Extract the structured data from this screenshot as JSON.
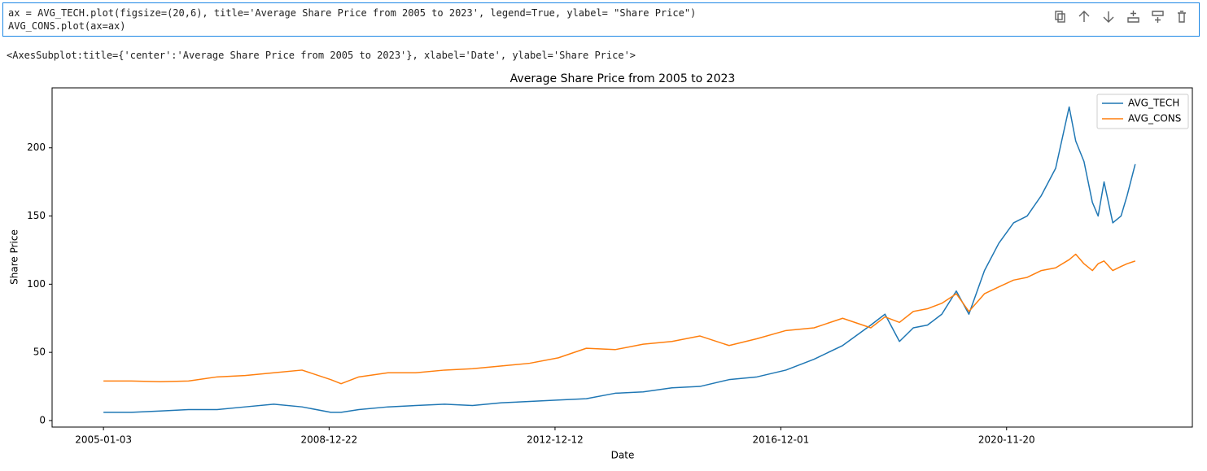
{
  "cell": {
    "code_lines": [
      "ax = AVG_TECH.plot(figsize=(20,6), title='Average Share Price from 2005 to 2023', legend=True, ylabel= \"Share Price\")",
      "AVG_CONS.plot(ax=ax)"
    ]
  },
  "output_text": "<AxesSubplot:title={'center':'Average Share Price from 2005 to 2023'}, xlabel='Date', ylabel='Share Price'>",
  "chart_data": {
    "type": "line",
    "title": "Average Share Price from 2005 to 2023",
    "xlabel": "Date",
    "ylabel": "Share Price",
    "legend": "upper right",
    "x": [
      "2005-01-03",
      "2005-07-01",
      "2006-01-03",
      "2006-07-03",
      "2007-01-03",
      "2007-07-02",
      "2008-01-02",
      "2008-07-01",
      "2009-01-02",
      "2009-03-09",
      "2009-07-01",
      "2010-01-04",
      "2010-07-01",
      "2011-01-03",
      "2011-07-01",
      "2012-01-03",
      "2012-07-02",
      "2013-01-02",
      "2013-07-01",
      "2014-01-02",
      "2014-07-01",
      "2015-01-02",
      "2015-07-01",
      "2016-01-04",
      "2016-07-01",
      "2017-01-03",
      "2017-07-03",
      "2018-01-02",
      "2018-07-02",
      "2018-10-01",
      "2019-01-02",
      "2019-04-01",
      "2019-07-01",
      "2019-10-01",
      "2020-01-02",
      "2020-03-23",
      "2020-07-01",
      "2020-10-01",
      "2021-01-04",
      "2021-04-01",
      "2021-07-01",
      "2021-10-01",
      "2021-12-27",
      "2022-02-07",
      "2022-04-01",
      "2022-05-25",
      "2022-07-01",
      "2022-08-08",
      "2022-10-03",
      "2022-11-25",
      "2023-01-03",
      "2023-02-24"
    ],
    "series": [
      {
        "name": "AVG_TECH",
        "color": "#1f77b4",
        "values": [
          6,
          6,
          7,
          8,
          8,
          10,
          12,
          10,
          6,
          6,
          8,
          10,
          11,
          12,
          11,
          13,
          14,
          15,
          16,
          20,
          21,
          24,
          25,
          30,
          32,
          37,
          45,
          55,
          70,
          78,
          58,
          68,
          70,
          78,
          95,
          78,
          110,
          130,
          145,
          150,
          165,
          185,
          230,
          205,
          190,
          160,
          150,
          175,
          145,
          150,
          165,
          188
        ]
      },
      {
        "name": "AVG_CONS",
        "color": "#ff7f0e",
        "values": [
          29,
          29,
          28.5,
          29,
          32,
          33,
          35,
          37,
          30,
          27,
          32,
          35,
          35,
          37,
          38,
          40,
          42,
          46,
          53,
          52,
          56,
          58,
          62,
          55,
          60,
          66,
          68,
          75,
          68,
          76,
          72,
          80,
          82,
          86,
          93,
          80,
          93,
          98,
          103,
          105,
          110,
          112,
          118,
          122,
          115,
          110,
          115,
          117,
          110,
          113,
          115,
          117
        ]
      }
    ],
    "xlim": [
      "2004-02-08",
      "2024-02-26"
    ],
    "xticks": [
      "2005-01-03",
      "2008-12-22",
      "2012-12-12",
      "2016-12-01",
      "2020-11-20"
    ],
    "ylim": [
      -4.8,
      244
    ],
    "yticks": [
      0,
      50,
      100,
      150,
      200
    ]
  }
}
